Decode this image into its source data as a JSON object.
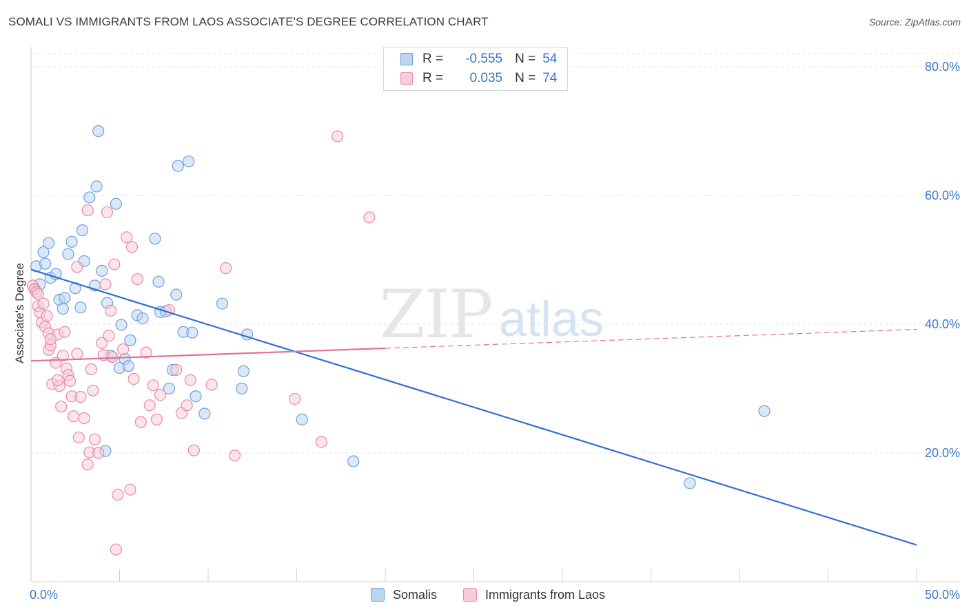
{
  "header": {
    "title": "SOMALI VS IMMIGRANTS FROM LAOS ASSOCIATE'S DEGREE CORRELATION CHART",
    "source": "Source: ZipAtlas.com"
  },
  "watermark": {
    "zip": "ZIP",
    "atlas": "atlas"
  },
  "legend": {
    "rows": [
      {
        "r_label": "R =",
        "r_value": "-0.555",
        "n_label": "N =",
        "n_value": "54",
        "color": "#a8c8f0"
      },
      {
        "r_label": "R =",
        "r_value": "0.035",
        "n_label": "N =",
        "n_value": "74",
        "color": "#f5b8cb"
      }
    ]
  },
  "bottom_legend": [
    {
      "label": "Somalis",
      "color": "#a8c8f0"
    },
    {
      "label": "Immigrants from Laos",
      "color": "#f5b8cb"
    }
  ],
  "chart_data": {
    "type": "scatter",
    "title": "SOMALI VS IMMIGRANTS FROM LAOS ASSOCIATE'S DEGREE CORRELATION CHART",
    "xlabel": "",
    "ylabel": "Associate's Degree",
    "xlim": [
      0,
      50
    ],
    "ylim": [
      0,
      80
    ],
    "x_ticks": [
      0,
      50
    ],
    "x_tick_labels": [
      "0.0%",
      "50.0%"
    ],
    "y_ticks": [
      20,
      40,
      60,
      80
    ],
    "y_tick_labels": [
      "20.0%",
      "40.0%",
      "60.0%",
      "80.0%"
    ],
    "grid": true,
    "series": [
      {
        "name": "Somalis",
        "color": "#6f9fdc",
        "fill": "#bcd5f3",
        "trend": {
          "x0": 0,
          "y0": 48.5,
          "x1": 50,
          "y1": 5.7,
          "dashed_from": null
        },
        "points": [
          [
            0.3,
            49.0
          ],
          [
            0.5,
            46.2
          ],
          [
            0.7,
            51.2
          ],
          [
            0.8,
            49.4
          ],
          [
            1.0,
            52.6
          ],
          [
            1.1,
            47.2
          ],
          [
            1.4,
            47.8
          ],
          [
            1.6,
            43.8
          ],
          [
            1.8,
            42.4
          ],
          [
            1.9,
            44.1
          ],
          [
            2.1,
            50.9
          ],
          [
            2.3,
            52.8
          ],
          [
            2.5,
            45.6
          ],
          [
            2.8,
            42.6
          ],
          [
            2.9,
            54.6
          ],
          [
            3.0,
            49.8
          ],
          [
            3.3,
            59.7
          ],
          [
            3.6,
            46.0
          ],
          [
            3.7,
            61.4
          ],
          [
            3.8,
            70.0
          ],
          [
            4.0,
            48.3
          ],
          [
            4.2,
            20.3
          ],
          [
            4.3,
            43.3
          ],
          [
            4.5,
            35.1
          ],
          [
            4.8,
            58.7
          ],
          [
            5.0,
            33.2
          ],
          [
            5.1,
            39.9
          ],
          [
            5.3,
            34.6
          ],
          [
            5.5,
            33.5
          ],
          [
            5.6,
            37.5
          ],
          [
            6.0,
            41.4
          ],
          [
            6.3,
            40.9
          ],
          [
            7.0,
            53.3
          ],
          [
            7.2,
            46.6
          ],
          [
            7.3,
            41.9
          ],
          [
            7.6,
            42.0
          ],
          [
            7.8,
            30.0
          ],
          [
            8.0,
            32.9
          ],
          [
            8.2,
            44.6
          ],
          [
            8.3,
            64.6
          ],
          [
            8.6,
            38.8
          ],
          [
            8.9,
            65.3
          ],
          [
            9.1,
            38.7
          ],
          [
            9.3,
            28.8
          ],
          [
            9.8,
            26.1
          ],
          [
            10.8,
            43.2
          ],
          [
            11.9,
            30.0
          ],
          [
            12.0,
            32.7
          ],
          [
            12.2,
            38.4
          ],
          [
            15.3,
            25.2
          ],
          [
            18.2,
            18.7
          ],
          [
            41.4,
            26.5
          ],
          [
            37.2,
            15.3
          ],
          [
            0.2,
            45.5
          ]
        ]
      },
      {
        "name": "Immigrants from Laos",
        "color": "#e88aa6",
        "fill": "#f8cdd9",
        "trend": {
          "x0": 0,
          "y0": 34.3,
          "x1": 50,
          "y1": 39.2,
          "dashed_from": 20
        },
        "points": [
          [
            0.1,
            46.0
          ],
          [
            0.2,
            45.4
          ],
          [
            0.3,
            45.0
          ],
          [
            0.4,
            42.8
          ],
          [
            0.5,
            41.8
          ],
          [
            0.6,
            40.3
          ],
          [
            0.8,
            39.6
          ],
          [
            0.9,
            41.3
          ],
          [
            1.0,
            38.6
          ],
          [
            1.0,
            36.0
          ],
          [
            1.1,
            36.7
          ],
          [
            1.2,
            30.7
          ],
          [
            1.4,
            34.0
          ],
          [
            1.5,
            38.4
          ],
          [
            1.6,
            30.4
          ],
          [
            1.7,
            27.2
          ],
          [
            1.8,
            35.1
          ],
          [
            2.0,
            33.1
          ],
          [
            2.1,
            32.1
          ],
          [
            2.2,
            31.2
          ],
          [
            2.3,
            28.8
          ],
          [
            2.4,
            25.7
          ],
          [
            2.6,
            35.4
          ],
          [
            2.7,
            22.4
          ],
          [
            2.8,
            28.7
          ],
          [
            3.0,
            25.4
          ],
          [
            3.2,
            18.2
          ],
          [
            3.3,
            20.1
          ],
          [
            3.4,
            33.0
          ],
          [
            3.5,
            29.7
          ],
          [
            3.6,
            22.1
          ],
          [
            3.8,
            20.0
          ],
          [
            4.0,
            37.1
          ],
          [
            4.1,
            35.2
          ],
          [
            4.2,
            46.2
          ],
          [
            4.3,
            57.4
          ],
          [
            4.4,
            38.2
          ],
          [
            4.5,
            42.1
          ],
          [
            4.6,
            34.9
          ],
          [
            4.7,
            49.3
          ],
          [
            4.9,
            13.5
          ],
          [
            4.8,
            5.0
          ],
          [
            5.2,
            36.1
          ],
          [
            5.4,
            53.5
          ],
          [
            5.6,
            14.3
          ],
          [
            5.7,
            52.0
          ],
          [
            5.8,
            31.5
          ],
          [
            6.0,
            47.0
          ],
          [
            6.2,
            24.8
          ],
          [
            6.5,
            35.6
          ],
          [
            6.7,
            27.4
          ],
          [
            6.9,
            30.5
          ],
          [
            7.1,
            25.2
          ],
          [
            7.3,
            29.0
          ],
          [
            7.8,
            42.2
          ],
          [
            8.2,
            32.9
          ],
          [
            8.5,
            26.2
          ],
          [
            8.8,
            27.4
          ],
          [
            9.0,
            31.3
          ],
          [
            9.2,
            20.4
          ],
          [
            10.2,
            30.6
          ],
          [
            11.0,
            48.7
          ],
          [
            11.5,
            19.6
          ],
          [
            14.9,
            28.4
          ],
          [
            16.4,
            21.7
          ],
          [
            17.3,
            69.2
          ],
          [
            19.1,
            56.6
          ],
          [
            3.2,
            57.7
          ],
          [
            2.6,
            48.9
          ],
          [
            1.9,
            38.8
          ],
          [
            1.1,
            37.7
          ],
          [
            0.7,
            43.2
          ],
          [
            0.4,
            44.7
          ],
          [
            1.5,
            31.3
          ]
        ]
      }
    ]
  }
}
